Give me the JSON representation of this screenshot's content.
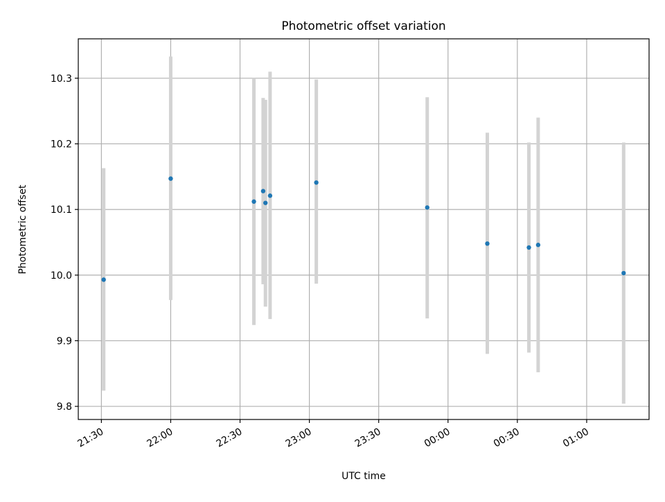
{
  "chart_data": {
    "type": "scatter",
    "title": "Photometric offset variation",
    "xlabel": "UTC time",
    "ylabel": "Photometric offset",
    "x_ticks": [
      "21:30",
      "22:00",
      "22:30",
      "23:00",
      "23:30",
      "00:00",
      "00:30",
      "01:00"
    ],
    "y_ticks": [
      "9.8",
      "9.9",
      "10.0",
      "10.1",
      "10.2",
      "10.3"
    ],
    "xlim": [
      "21:20",
      "01:27"
    ],
    "ylim": [
      9.78,
      10.36
    ],
    "grid": true,
    "point_color": "#1f77b4",
    "errorbar_color": "#d3d3d3",
    "points": [
      {
        "time": "21:31",
        "y": 9.993,
        "low": 9.824,
        "high": 10.163
      },
      {
        "time": "22:00",
        "y": 10.147,
        "low": 9.962,
        "high": 10.333
      },
      {
        "time": "22:36",
        "y": 10.112,
        "low": 9.924,
        "high": 10.3
      },
      {
        "time": "22:40",
        "y": 10.128,
        "low": 9.986,
        "high": 10.27
      },
      {
        "time": "22:41",
        "y": 10.11,
        "low": 9.952,
        "high": 10.267
      },
      {
        "time": "22:43",
        "y": 10.121,
        "low": 9.933,
        "high": 10.31
      },
      {
        "time": "23:03",
        "y": 10.141,
        "low": 9.987,
        "high": 10.298
      },
      {
        "time": "23:51",
        "y": 10.103,
        "low": 9.934,
        "high": 10.271
      },
      {
        "time": "00:17",
        "y": 10.048,
        "low": 9.88,
        "high": 10.217
      },
      {
        "time": "00:35",
        "y": 10.042,
        "low": 9.882,
        "high": 10.202
      },
      {
        "time": "00:39",
        "y": 10.046,
        "low": 9.852,
        "high": 10.24
      },
      {
        "time": "01:16",
        "y": 10.003,
        "low": 9.804,
        "high": 10.202
      }
    ]
  }
}
